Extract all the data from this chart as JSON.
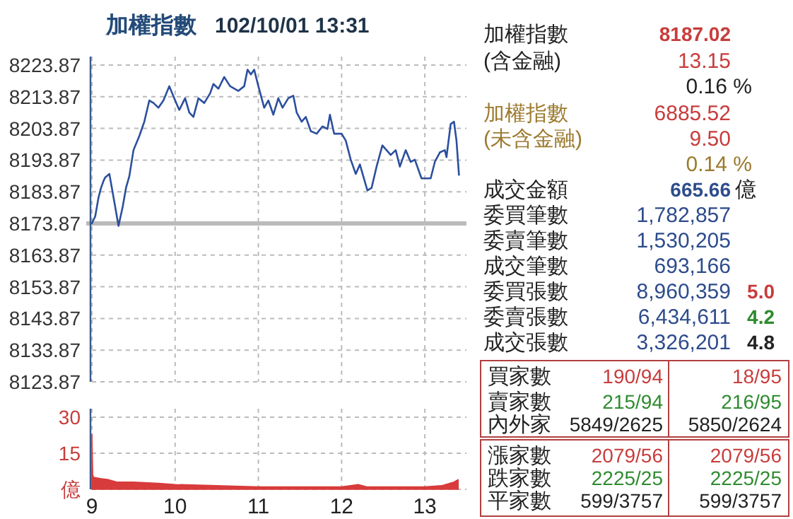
{
  "chart_data": [
    {
      "type": "line",
      "title": "加權指數",
      "subtitle": "102/10/01 13:31",
      "color": "#2c4f9e",
      "line_style": "solid",
      "grid": true,
      "tick_labels": "y",
      "x": [
        9.0,
        9.04,
        9.08,
        9.11,
        9.14,
        9.16,
        9.21,
        9.24,
        9.28,
        9.32,
        9.37,
        9.41,
        9.45,
        9.5,
        9.57,
        9.63,
        9.69,
        9.74,
        9.8,
        9.86,
        9.93,
        10.0,
        10.05,
        10.12,
        10.17,
        10.22,
        10.28,
        10.35,
        10.42,
        10.46,
        10.52,
        10.59,
        10.66,
        10.76,
        10.83,
        10.87,
        10.91,
        10.95,
        11.0,
        11.07,
        11.12,
        11.18,
        11.24,
        11.29,
        11.36,
        11.42,
        11.46,
        11.52,
        11.57,
        11.63,
        11.7,
        11.77,
        11.83,
        11.86,
        11.91,
        12.0,
        12.05,
        12.11,
        12.17,
        12.22,
        12.26,
        12.31,
        12.36,
        12.42,
        12.49,
        12.54,
        12.59,
        12.65,
        12.7,
        12.77,
        12.83,
        12.88,
        12.96,
        13.01,
        13.07,
        13.12,
        13.18,
        13.24,
        13.26,
        13.31,
        13.35,
        13.38,
        13.41
      ],
      "values": [
        8173.87,
        8176.1,
        8182.1,
        8185.1,
        8187.3,
        8188.4,
        8189.5,
        8185.1,
        8179.1,
        8173.1,
        8179.1,
        8185.1,
        8188.8,
        8197.0,
        8201.5,
        8206.0,
        8212.7,
        8211.9,
        8210.4,
        8212.7,
        8217.2,
        8212.7,
        8209.7,
        8213.4,
        8208.9,
        8207.5,
        8213.4,
        8211.9,
        8214.9,
        8217.9,
        8216.4,
        8220.1,
        8217.2,
        8215.7,
        8217.2,
        8222.4,
        8220.9,
        8222.4,
        8217.2,
        8210.4,
        8212.7,
        8208.2,
        8213.4,
        8210.4,
        8213.4,
        8214.2,
        8208.9,
        8206.0,
        8207.5,
        8203.0,
        8202.2,
        8204.5,
        8203.7,
        8208.2,
        8202.2,
        8202.2,
        8200.0,
        8194.0,
        8189.5,
        8192.5,
        8188.8,
        8184.3,
        8185.1,
        8191.8,
        8198.5,
        8197.0,
        8195.5,
        8197.0,
        8191.8,
        8197.0,
        8193.3,
        8194.0,
        8188.1,
        8188.1,
        8188.1,
        8193.3,
        8196.3,
        8197.0,
        8194.8,
        8205.2,
        8206.0,
        8200.0,
        8189.2
      ],
      "xlim": [
        9,
        13.5
      ],
      "xticks": [
        9,
        10,
        11,
        12,
        13
      ],
      "ylim": [
        8123.87,
        8223.87
      ],
      "yticks": [
        8123.87,
        8133.87,
        8143.87,
        8153.87,
        8163.87,
        8173.87,
        8183.87,
        8193.87,
        8203.87,
        8213.87,
        8223.87
      ],
      "ref_lines": [
        {
          "axis": "y",
          "value": 8173.87,
          "color": "#bbbbbb"
        }
      ]
    },
    {
      "type": "area",
      "color": "#d83b3b",
      "grid": true,
      "x": [
        9.0,
        9.01,
        9.02,
        9.1,
        9.2,
        9.3,
        9.5,
        9.8,
        10.0,
        10.5,
        11.0,
        11.5,
        12.0,
        12.2,
        12.3,
        13.0,
        13.2,
        13.35,
        13.4
      ],
      "values": [
        23,
        6,
        5,
        4.5,
        4,
        3,
        3,
        2.5,
        2,
        1.5,
        1,
        1,
        1,
        2,
        1,
        1,
        1.5,
        3,
        4
      ],
      "xlim": [
        9,
        13.5
      ],
      "xticks": [
        9,
        10,
        11,
        12,
        13
      ],
      "ylim": [
        0,
        30
      ],
      "yticks": [
        {
          "value": 0,
          "label": "億"
        },
        15,
        30
      ]
    },
    {
      "type": "other",
      "annotations": [
        "加權指數",
        "8187.02",
        "(含金融)",
        "13.15",
        "0.16 %",
        "加權指數",
        "6885.52",
        "(未含金融)",
        "9.50",
        "0.14 %",
        "成交金額",
        "665.66",
        "億",
        "委買筆數",
        "1,782,857",
        "委賣筆數",
        "1,530,205",
        "成交筆數",
        "693,166",
        "委買張數",
        "8,960,359",
        "5.0",
        "委賣張數",
        "6,434,611",
        "4.2",
        "成交張數",
        "3,326,201",
        "4.8",
        "買家數",
        "190/94",
        "18/95",
        "賣家數",
        "215/94",
        "216/95",
        "內外家",
        "5849/2625",
        "5850/2624",
        "漲家數",
        "2079/56",
        "2079/56",
        "跌家數",
        "2225/25",
        "2225/25",
        "平家數",
        "599/3757",
        "599/3757"
      ]
    }
  ]
}
